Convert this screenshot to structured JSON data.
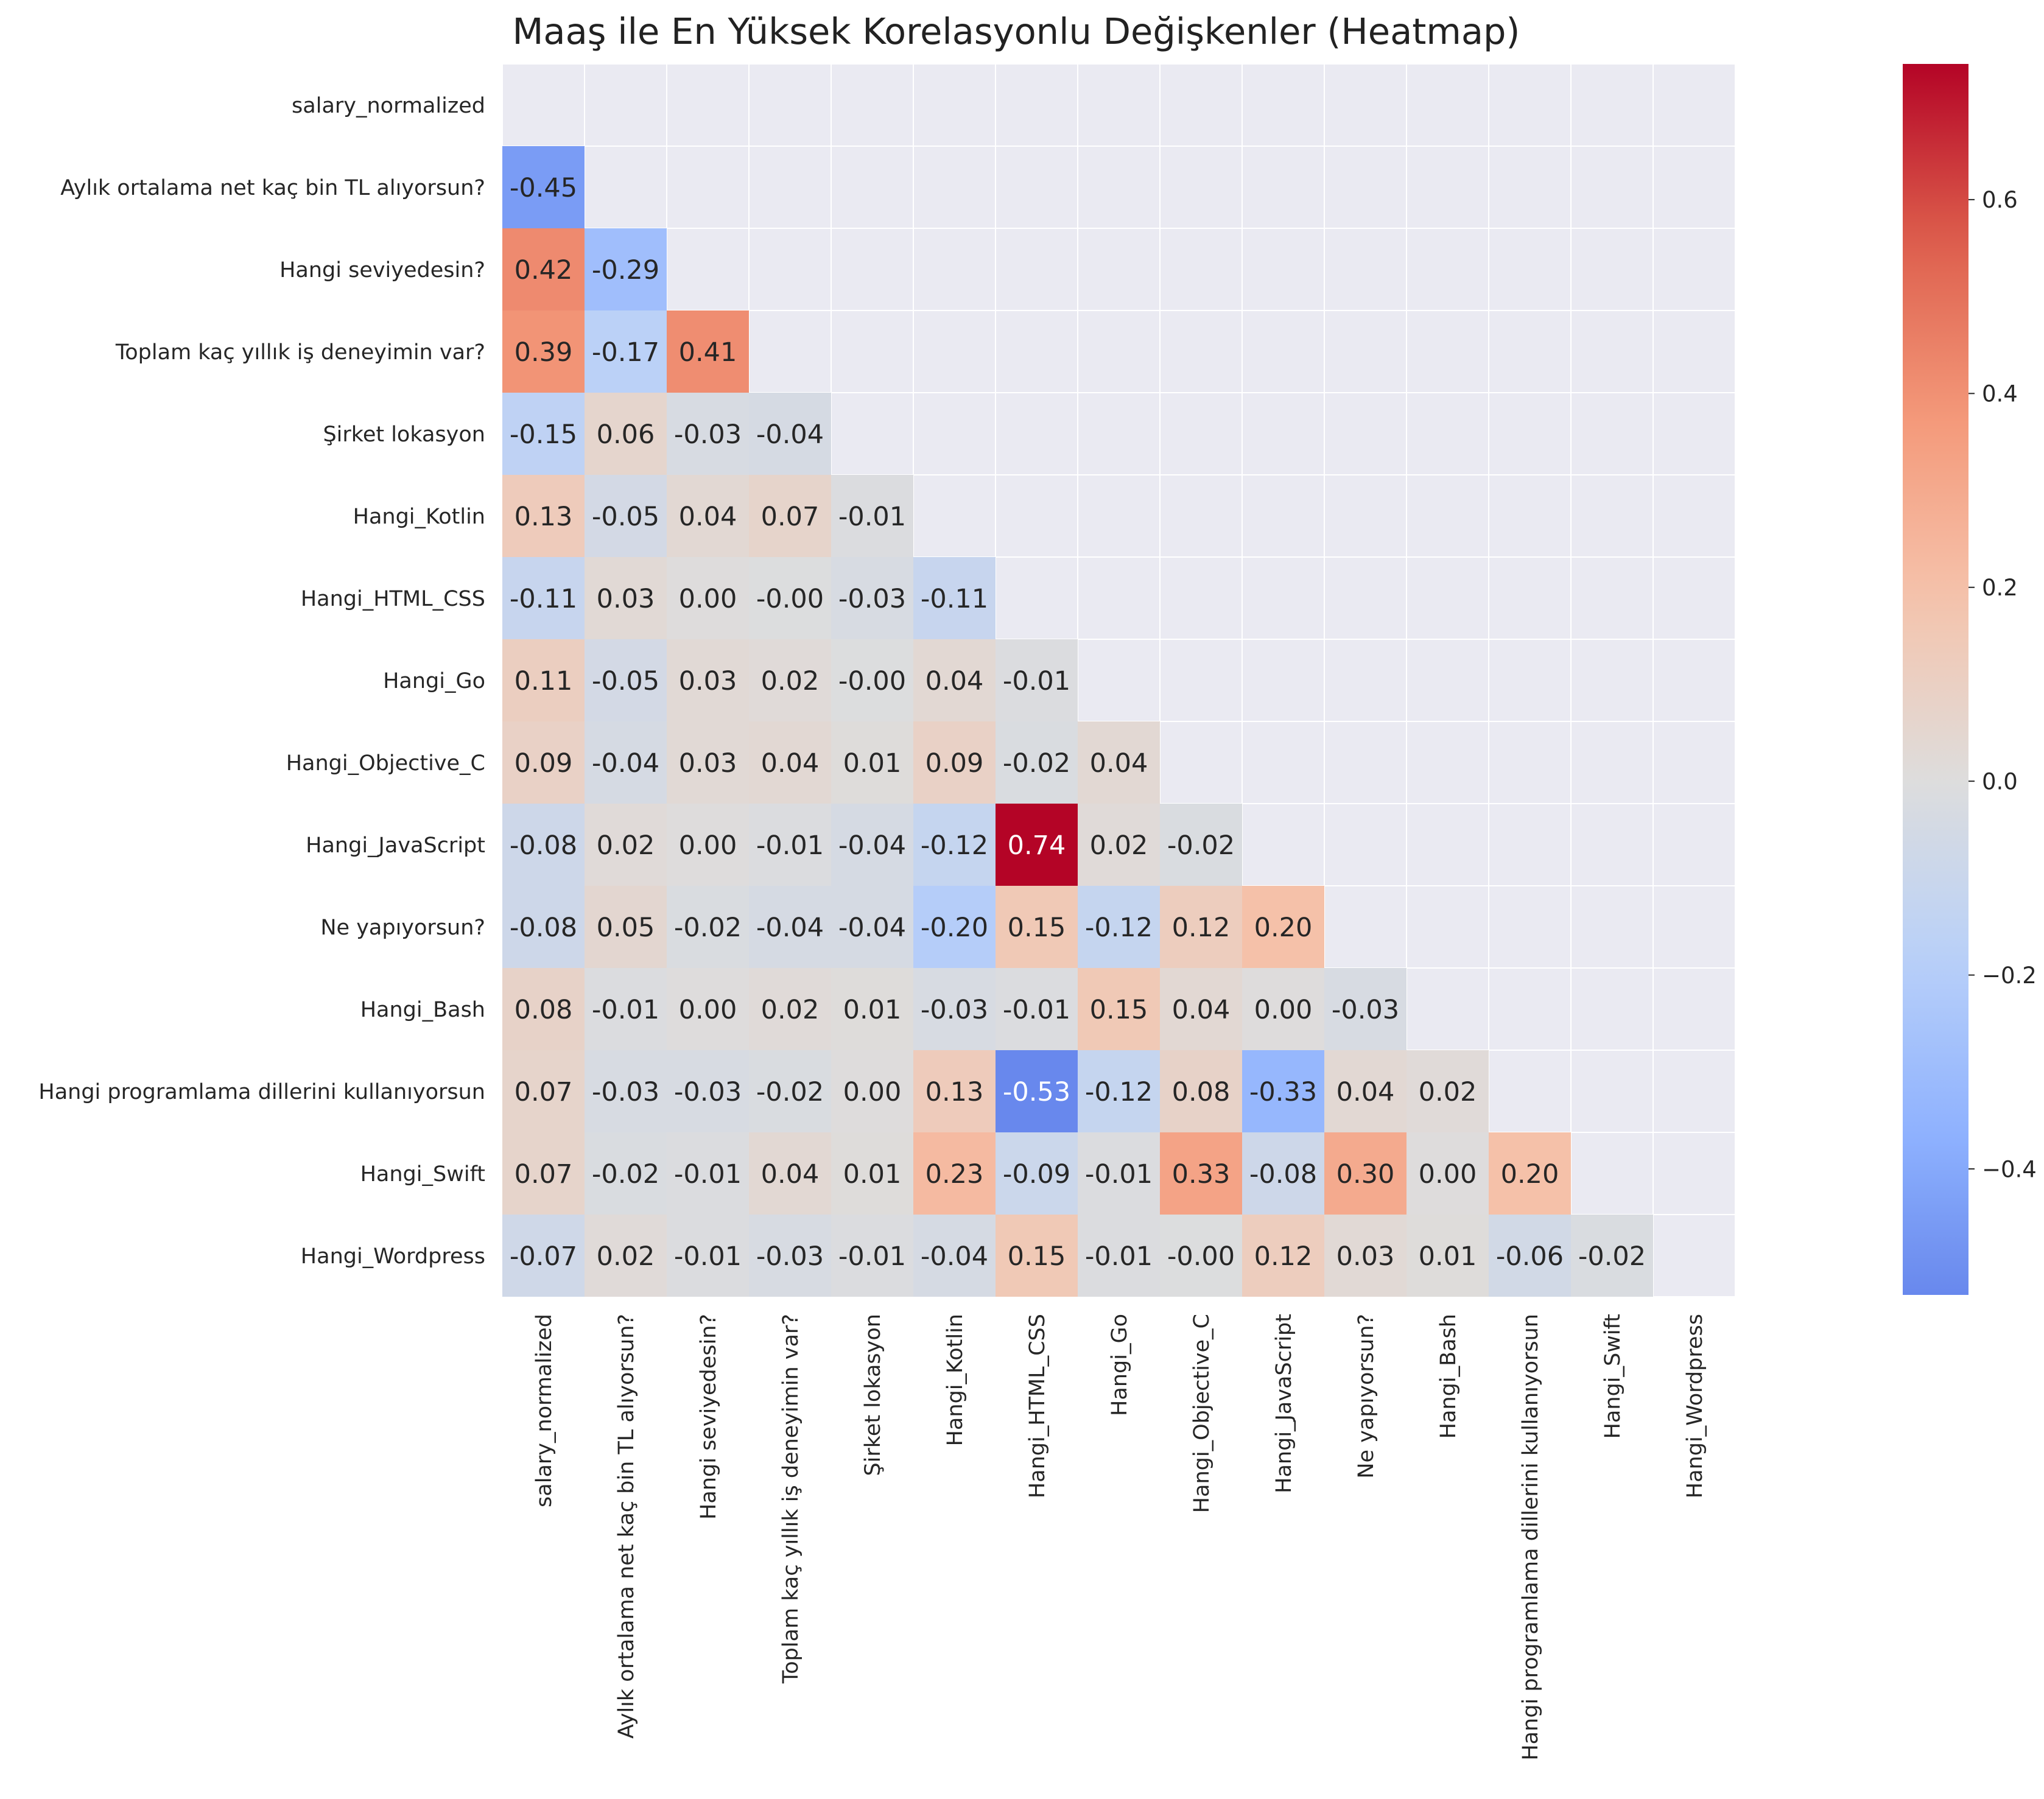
{
  "chart_data": {
    "type": "heatmap",
    "title": "Maaş ile En Yüksek Korelasyonlu Değişkenler (Heatmap)",
    "xlabel": "",
    "ylabel": "",
    "colormap": "coolwarm",
    "mask": "upper-triangle-including-diagonal",
    "grid": true,
    "background_color": "#EAEAF2",
    "vmin": -0.53,
    "vmax": 0.74,
    "labels": [
      "salary_normalized",
      "Aylık ortalama net kaç bin TL alıyorsun?",
      "Hangi seviyedesin?",
      "Toplam kaç yıllık iş deneyimin var?",
      "Şirket lokasyon",
      "Hangi_Kotlin",
      "Hangi_HTML_CSS",
      "Hangi_Go",
      "Hangi_Objective_C",
      "Hangi_JavaScript",
      "Ne yapıyorsun?",
      "Hangi_Bash",
      "Hangi programlama dillerini kullanıyorsun",
      "Hangi_Swift",
      "Hangi_Wordpress"
    ],
    "rows": [
      [],
      [
        -0.45
      ],
      [
        0.42,
        -0.29
      ],
      [
        0.39,
        -0.17,
        0.41
      ],
      [
        -0.15,
        0.06,
        -0.03,
        -0.04
      ],
      [
        0.13,
        -0.05,
        0.04,
        0.07,
        -0.01
      ],
      [
        -0.11,
        0.03,
        0.004,
        -0.004,
        -0.03,
        -0.11
      ],
      [
        0.11,
        -0.05,
        0.03,
        0.02,
        -0.004,
        0.04,
        -0.01
      ],
      [
        0.09,
        -0.04,
        0.03,
        0.04,
        0.01,
        0.09,
        -0.02,
        0.04
      ],
      [
        -0.08,
        0.02,
        0.004,
        -0.01,
        -0.04,
        -0.12,
        0.74,
        0.02,
        -0.02
      ],
      [
        -0.08,
        0.05,
        -0.02,
        -0.04,
        -0.04,
        -0.2,
        0.15,
        -0.12,
        0.12,
        0.2
      ],
      [
        0.08,
        -0.01,
        0.004,
        0.02,
        0.01,
        -0.03,
        -0.01,
        0.15,
        0.04,
        0.004,
        -0.03
      ],
      [
        0.07,
        -0.03,
        -0.03,
        -0.02,
        0.004,
        0.13,
        -0.53,
        -0.12,
        0.08,
        -0.33,
        0.04,
        0.02
      ],
      [
        0.07,
        -0.02,
        -0.01,
        0.04,
        0.01,
        0.23,
        -0.09,
        -0.01,
        0.33,
        -0.08,
        0.3,
        0.004,
        0.2
      ],
      [
        -0.07,
        0.02,
        -0.01,
        -0.03,
        -0.01,
        -0.04,
        0.15,
        -0.01,
        -0.004,
        0.12,
        0.03,
        0.01,
        -0.06,
        -0.02
      ]
    ],
    "cell_labels": [
      [],
      [
        "-0.45"
      ],
      [
        "0.42",
        "-0.29"
      ],
      [
        "0.39",
        "-0.17",
        "0.41"
      ],
      [
        "-0.15",
        "0.06",
        "-0.03",
        "-0.04"
      ],
      [
        "0.13",
        "-0.05",
        "0.04",
        "0.07",
        "-0.01"
      ],
      [
        "-0.11",
        "0.03",
        "0.00",
        "-0.00",
        "-0.03",
        "-0.11"
      ],
      [
        "0.11",
        "-0.05",
        "0.03",
        "0.02",
        "-0.00",
        "0.04",
        "-0.01"
      ],
      [
        "0.09",
        "-0.04",
        "0.03",
        "0.04",
        "0.01",
        "0.09",
        "-0.02",
        "0.04"
      ],
      [
        "-0.08",
        "0.02",
        "0.00",
        "-0.01",
        "-0.04",
        "-0.12",
        "0.74",
        "0.02",
        "-0.02"
      ],
      [
        "-0.08",
        "0.05",
        "-0.02",
        "-0.04",
        "-0.04",
        "-0.20",
        "0.15",
        "-0.12",
        "0.12",
        "0.20"
      ],
      [
        "0.08",
        "-0.01",
        "0.00",
        "0.02",
        "0.01",
        "-0.03",
        "-0.01",
        "0.15",
        "0.04",
        "0.00",
        "-0.03"
      ],
      [
        "0.07",
        "-0.03",
        "-0.03",
        "-0.02",
        "0.00",
        "0.13",
        "-0.53",
        "-0.12",
        "0.08",
        "-0.33",
        "0.04",
        "0.02"
      ],
      [
        "0.07",
        "-0.02",
        "-0.01",
        "0.04",
        "0.01",
        "0.23",
        "-0.09",
        "-0.01",
        "0.33",
        "-0.08",
        "0.30",
        "0.00",
        "0.20"
      ],
      [
        "-0.07",
        "0.02",
        "-0.01",
        "-0.03",
        "-0.01",
        "-0.04",
        "0.15",
        "-0.01",
        "-0.00",
        "0.12",
        "0.03",
        "0.01",
        "-0.06",
        "-0.02"
      ]
    ],
    "colorbar": {
      "ticks": [
        -0.4,
        -0.2,
        0.0,
        0.2,
        0.4,
        0.6
      ],
      "tick_labels": [
        "−0.4",
        "−0.2",
        "0.0",
        "0.2",
        "0.4",
        "0.6"
      ]
    }
  }
}
